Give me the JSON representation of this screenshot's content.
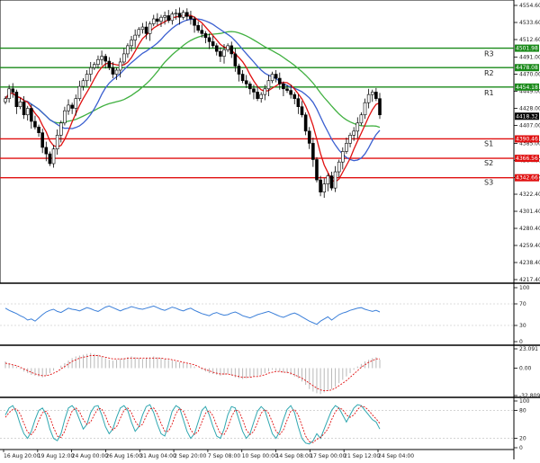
{
  "colors": {
    "background": "#ffffff",
    "candle": "#000000",
    "resistance": "#1a8a1a",
    "support": "#e01010",
    "ma_fast": "#e01010",
    "ma_mid": "#3a5fd0",
    "ma_slow": "#40b040",
    "rsi": "#3b7fd9",
    "macd_hist": "#b8b8b8",
    "macd_signal": "#e01010",
    "stoch_k": "#2fa7b0",
    "stoch_d": "#e01010",
    "label_bg_price": "#000000",
    "label_bg_green": "#1a8a1a",
    "label_bg_red": "#e01010"
  },
  "main_panel": {
    "price_ticks": [
      "4554.60",
      "4533.60",
      "4512.60",
      "4491.00",
      "4470.00",
      "4449.00",
      "4428.00",
      "4407.00",
      "4385.00",
      "4364.00",
      "4343.00",
      "4322.40",
      "4301.40",
      "4280.40",
      "4259.40",
      "4238.40",
      "4217.40"
    ],
    "levels": [
      {
        "name": "R3",
        "price": 4501.98,
        "label": "4501.98",
        "kind": "resistance"
      },
      {
        "name": "R2",
        "price": 4478.08,
        "label": "4478.08",
        "kind": "resistance"
      },
      {
        "name": "R1",
        "price": 4454.18,
        "label": "4454.18",
        "kind": "resistance"
      },
      {
        "name": "S1",
        "price": 4390.46,
        "label": "4390.46",
        "kind": "support"
      },
      {
        "name": "S2",
        "price": 4366.56,
        "label": "4366.56",
        "kind": "support"
      },
      {
        "name": "S3",
        "price": 4342.66,
        "label": "4342.66",
        "kind": "support"
      }
    ],
    "current_price_label": "4418.32",
    "current_price": 4418.32,
    "extra_label": "4389.10"
  },
  "rsi_panel": {
    "ticks": [
      "100",
      "70",
      "30",
      "0"
    ],
    "levels": [
      100,
      70,
      30,
      0
    ]
  },
  "macd_panel": {
    "ticks": [
      "23.091",
      "0.00",
      "-32.809"
    ]
  },
  "stoch_panel": {
    "ticks": [
      "100",
      "80",
      "20",
      "0"
    ]
  },
  "time_axis": [
    "16 Aug 20:00",
    "19 Aug 12:00",
    "24 Aug 00:00",
    "26 Aug 16:00",
    "31 Aug 04:00",
    "2 Sep 20:00",
    "7 Sep 08:00",
    "10 Sep 00:00",
    "14 Sep 08:00",
    "17 Sep 00:00",
    "21 Sep 12:00",
    "24 Sep 04:00"
  ],
  "chart_data": {
    "type": "candlestick",
    "price_axis_range": [
      4217.4,
      4554.6
    ],
    "closes": [
      4440,
      4452,
      4448,
      4430,
      4436,
      4420,
      4428,
      4412,
      4405,
      4398,
      4380,
      4372,
      4360,
      4378,
      4395,
      4410,
      4425,
      4432,
      4428,
      4440,
      4455,
      4462,
      4470,
      4478,
      4482,
      4488,
      4492,
      4486,
      4478,
      4470,
      4475,
      4485,
      4495,
      4505,
      4512,
      4518,
      4525,
      4528,
      4520,
      4532,
      4538,
      4535,
      4540,
      4542,
      4536,
      4544,
      4545,
      4540,
      4546,
      4541,
      4538,
      4530,
      4524,
      4520,
      4515,
      4510,
      4505,
      4498,
      4492,
      4500,
      4505,
      4495,
      4480,
      4470,
      4462,
      4458,
      4452,
      4448,
      4440,
      4445,
      4452,
      4462,
      4470,
      4465,
      4458,
      4452,
      4450,
      4445,
      4440,
      4430,
      4420,
      4400,
      4385,
      4365,
      4340,
      4325,
      4335,
      4345,
      4330,
      4350,
      4362,
      4375,
      4385,
      4395,
      4400,
      4410,
      4420,
      4435,
      4445,
      4448,
      4440,
      4420
    ],
    "ma_fast_note": "red moving average",
    "ma_mid_note": "blue moving average",
    "ma_slow_note": "green moving average",
    "rsi": [
      62,
      58,
      55,
      52,
      48,
      45,
      40,
      42,
      38,
      44,
      50,
      55,
      58,
      60,
      56,
      54,
      58,
      62,
      60,
      59,
      57,
      60,
      63,
      61,
      58,
      56,
      60,
      64,
      66,
      63,
      60,
      57,
      60,
      62,
      65,
      63,
      61,
      60,
      62,
      64,
      66,
      63,
      60,
      58,
      61,
      64,
      62,
      59,
      57,
      60,
      62,
      58,
      55,
      52,
      50,
      48,
      52,
      54,
      51,
      49,
      50,
      53,
      55,
      52,
      48,
      46,
      44,
      47,
      50,
      52,
      54,
      56,
      53,
      50,
      47,
      45,
      48,
      51,
      53,
      50,
      46,
      42,
      38,
      35,
      32,
      38,
      42,
      46,
      40,
      45,
      50,
      53,
      55,
      58,
      60,
      62,
      63,
      60,
      58,
      56,
      58,
      55
    ],
    "macd_hist": [
      8,
      6,
      4,
      2,
      -1,
      -4,
      -6,
      -8,
      -9,
      -10,
      -11,
      -9,
      -6,
      -3,
      0,
      3,
      6,
      9,
      12,
      14,
      15,
      16,
      17,
      18,
      17,
      16,
      14,
      12,
      10,
      9,
      10,
      11,
      12,
      13,
      14,
      13,
      12,
      11,
      12,
      13,
      14,
      13,
      12,
      11,
      10,
      9,
      8,
      7,
      6,
      5,
      4,
      2,
      0,
      -2,
      -4,
      -6,
      -7,
      -8,
      -9,
      -8,
      -7,
      -9,
      -11,
      -12,
      -13,
      -12,
      -11,
      -10,
      -9,
      -8,
      -6,
      -4,
      -2,
      -3,
      -4,
      -5,
      -6,
      -8,
      -10,
      -12,
      -16,
      -20,
      -25,
      -28,
      -30,
      -31,
      -29,
      -27,
      -25,
      -22,
      -18,
      -14,
      -10,
      -6,
      -2,
      2,
      5,
      8,
      10,
      12,
      13,
      10
    ],
    "macd_signal": [
      6,
      5,
      4,
      3,
      1,
      -1,
      -3,
      -5,
      -7,
      -8,
      -9,
      -9,
      -8,
      -6,
      -4,
      -1,
      2,
      5,
      8,
      10,
      12,
      13,
      14,
      15,
      15,
      15,
      14,
      13,
      12,
      11,
      11,
      11,
      11,
      12,
      12,
      12,
      12,
      12,
      12,
      12,
      12,
      12,
      12,
      11,
      11,
      10,
      9,
      8,
      7,
      6,
      5,
      4,
      2,
      0,
      -2,
      -3,
      -5,
      -6,
      -7,
      -7,
      -7,
      -8,
      -9,
      -10,
      -11,
      -11,
      -11,
      -10,
      -10,
      -9,
      -8,
      -6,
      -5,
      -4,
      -4,
      -5,
      -5,
      -6,
      -8,
      -10,
      -12,
      -15,
      -18,
      -21,
      -24,
      -26,
      -27,
      -27,
      -26,
      -24,
      -21,
      -18,
      -15,
      -11,
      -7,
      -3,
      1,
      4,
      7,
      9,
      11,
      11
    ],
    "stoch_k": [
      70,
      85,
      90,
      75,
      50,
      30,
      20,
      35,
      60,
      80,
      85,
      70,
      40,
      20,
      15,
      30,
      60,
      85,
      90,
      80,
      60,
      40,
      50,
      75,
      88,
      90,
      70,
      45,
      30,
      40,
      65,
      85,
      90,
      80,
      55,
      35,
      45,
      70,
      88,
      92,
      75,
      50,
      30,
      25,
      50,
      78,
      90,
      85,
      60,
      35,
      20,
      30,
      55,
      80,
      88,
      70,
      45,
      25,
      20,
      40,
      70,
      88,
      85,
      60,
      35,
      20,
      30,
      55,
      78,
      88,
      80,
      55,
      30,
      20,
      35,
      60,
      82,
      90,
      75,
      45,
      20,
      10,
      8,
      15,
      30,
      20,
      40,
      60,
      80,
      90,
      85,
      70,
      55,
      70,
      85,
      92,
      90,
      80,
      70,
      60,
      55,
      40
    ],
    "stoch_d": [
      65,
      75,
      82,
      83,
      72,
      52,
      33,
      28,
      38,
      58,
      75,
      78,
      65,
      43,
      25,
      22,
      35,
      58,
      78,
      85,
      77,
      60,
      50,
      55,
      71,
      84,
      83,
      68,
      48,
      38,
      45,
      63,
      80,
      85,
      75,
      57,
      45,
      50,
      68,
      83,
      85,
      72,
      52,
      35,
      35,
      51,
      73,
      84,
      78,
      60,
      38,
      28,
      35,
      55,
      74,
      79,
      68,
      47,
      30,
      28,
      43,
      66,
      81,
      78,
      60,
      38,
      28,
      35,
      54,
      74,
      82,
      74,
      55,
      35,
      28,
      38,
      59,
      78,
      82,
      70,
      47,
      25,
      13,
      11,
      18,
      22,
      30,
      40,
      60,
      77,
      85,
      82,
      70,
      65,
      70,
      82,
      89,
      87,
      80,
      70,
      62,
      52
    ]
  }
}
